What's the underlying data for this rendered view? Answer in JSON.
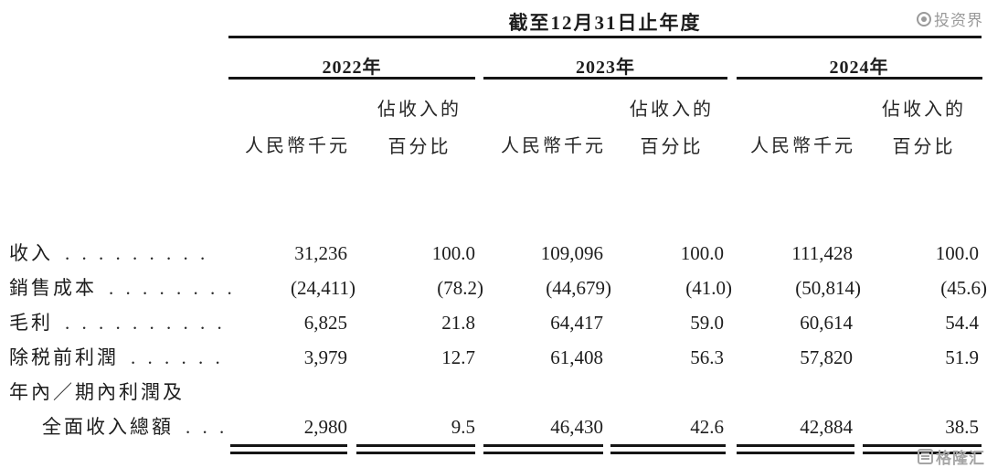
{
  "page": {
    "background": "#ffffff",
    "text_color": "#1d1d1d",
    "rule_color": "#151515"
  },
  "watermark_top": {
    "text": "投资界",
    "color": "#9a9a9a"
  },
  "watermark_bottom": {
    "text": "格隆汇",
    "color": "#a5a5a5"
  },
  "table": {
    "title": "截至12月31日止年度",
    "years": [
      {
        "label": "2022年"
      },
      {
        "label": "2023年"
      },
      {
        "label": "2024年"
      }
    ],
    "col_headers": {
      "amount": "人民幣千元",
      "pct_line1": "佔收入的",
      "pct_line2": "百分比"
    },
    "rows": [
      {
        "label": "收入",
        "dots": ". . . . . . . . .",
        "values": [
          "31,236",
          "100.0",
          "109,096",
          "100.0",
          "111,428",
          "100.0"
        ]
      },
      {
        "label": "銷售成本",
        "dots": ". . . . . . . .",
        "values": [
          "(24,411)",
          "(78.2)",
          "(44,679)",
          "(41.0)",
          "(50,814)",
          "(45.6)"
        ]
      },
      {
        "label": "毛利",
        "dots": ". . . . . . . . . .",
        "values": [
          "6,825",
          "21.8",
          "64,417",
          "59.0",
          "60,614",
          "54.4"
        ]
      },
      {
        "label": "除税前利潤",
        "dots": ". . . . . .",
        "values": [
          "3,979",
          "12.7",
          "61,408",
          "56.3",
          "57,820",
          "51.9"
        ]
      },
      {
        "label": "年內／期內利潤及",
        "dots": "",
        "values": [
          "",
          "",
          "",
          "",
          "",
          ""
        ]
      },
      {
        "label": "全面收入總額",
        "dots": ". . .",
        "values": [
          "2,980",
          "9.5",
          "46,430",
          "42.6",
          "42,884",
          "38.5"
        ]
      }
    ]
  }
}
